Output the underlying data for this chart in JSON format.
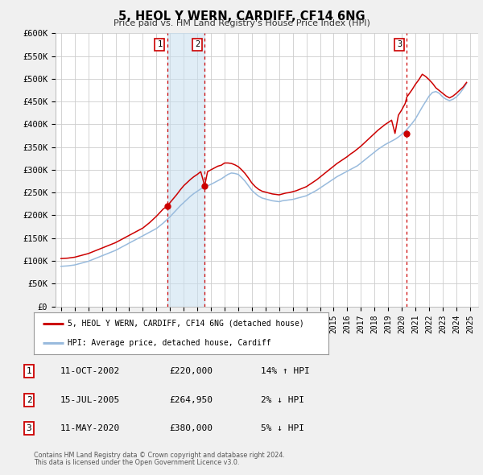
{
  "title": "5, HEOL Y WERN, CARDIFF, CF14 6NG",
  "subtitle": "Price paid vs. HM Land Registry's House Price Index (HPI)",
  "legend_line1": "5, HEOL Y WERN, CARDIFF, CF14 6NG (detached house)",
  "legend_line2": "HPI: Average price, detached house, Cardiff",
  "footer1": "Contains HM Land Registry data © Crown copyright and database right 2024.",
  "footer2": "This data is licensed under the Open Government Licence v3.0.",
  "sale_color": "#cc0000",
  "hpi_color": "#99bbdd",
  "background_color": "#f0f0f0",
  "plot_bg_color": "#ffffff",
  "grid_color": "#cccccc",
  "ylim": [
    0,
    600000
  ],
  "yticks": [
    0,
    50000,
    100000,
    150000,
    200000,
    250000,
    300000,
    350000,
    400000,
    450000,
    500000,
    550000,
    600000
  ],
  "ytick_labels": [
    "£0",
    "£50K",
    "£100K",
    "£150K",
    "£200K",
    "£250K",
    "£300K",
    "£350K",
    "£400K",
    "£450K",
    "£500K",
    "£550K",
    "£600K"
  ],
  "xlim_start": 1994.6,
  "xlim_end": 2025.6,
  "xtick_years": [
    1995,
    1996,
    1997,
    1998,
    1999,
    2000,
    2001,
    2002,
    2003,
    2004,
    2005,
    2006,
    2007,
    2008,
    2009,
    2010,
    2011,
    2012,
    2013,
    2014,
    2015,
    2016,
    2017,
    2018,
    2019,
    2020,
    2021,
    2022,
    2023,
    2024,
    2025
  ],
  "sales": [
    {
      "year": 2002.79,
      "price": 220000,
      "label": "1"
    },
    {
      "year": 2005.54,
      "price": 264950,
      "label": "2"
    },
    {
      "year": 2020.37,
      "price": 380000,
      "label": "3"
    }
  ],
  "sale_vlines": [
    2002.79,
    2005.54,
    2020.37
  ],
  "table_rows": [
    {
      "num": "1",
      "date": "11-OCT-2002",
      "price": "£220,000",
      "hpi": "14% ↑ HPI"
    },
    {
      "num": "2",
      "date": "15-JUL-2005",
      "price": "£264,950",
      "hpi": "2% ↓ HPI"
    },
    {
      "num": "3",
      "date": "11-MAY-2020",
      "price": "£380,000",
      "hpi": "5% ↓ HPI"
    }
  ],
  "hpi_x": [
    1995.0,
    1995.25,
    1995.5,
    1995.75,
    1996.0,
    1996.25,
    1996.5,
    1996.75,
    1997.0,
    1997.25,
    1997.5,
    1997.75,
    1998.0,
    1998.25,
    1998.5,
    1998.75,
    1999.0,
    1999.25,
    1999.5,
    1999.75,
    2000.0,
    2000.25,
    2000.5,
    2000.75,
    2001.0,
    2001.25,
    2001.5,
    2001.75,
    2002.0,
    2002.25,
    2002.5,
    2002.75,
    2003.0,
    2003.25,
    2003.5,
    2003.75,
    2004.0,
    2004.25,
    2004.5,
    2004.75,
    2005.0,
    2005.25,
    2005.5,
    2005.75,
    2006.0,
    2006.25,
    2006.5,
    2006.75,
    2007.0,
    2007.25,
    2007.5,
    2007.75,
    2008.0,
    2008.25,
    2008.5,
    2008.75,
    2009.0,
    2009.25,
    2009.5,
    2009.75,
    2010.0,
    2010.25,
    2010.5,
    2010.75,
    2011.0,
    2011.25,
    2011.5,
    2011.75,
    2012.0,
    2012.25,
    2012.5,
    2012.75,
    2013.0,
    2013.25,
    2013.5,
    2013.75,
    2014.0,
    2014.25,
    2014.5,
    2014.75,
    2015.0,
    2015.25,
    2015.5,
    2015.75,
    2016.0,
    2016.25,
    2016.5,
    2016.75,
    2017.0,
    2017.25,
    2017.5,
    2017.75,
    2018.0,
    2018.25,
    2018.5,
    2018.75,
    2019.0,
    2019.25,
    2019.5,
    2019.75,
    2020.0,
    2020.25,
    2020.5,
    2020.75,
    2021.0,
    2021.25,
    2021.5,
    2021.75,
    2022.0,
    2022.25,
    2022.5,
    2022.75,
    2023.0,
    2023.25,
    2023.5,
    2023.75,
    2024.0,
    2024.25,
    2024.5,
    2024.75
  ],
  "hpi_y": [
    88000,
    88500,
    89000,
    90000,
    91000,
    93000,
    95000,
    97000,
    99000,
    102000,
    105000,
    108000,
    111000,
    114000,
    117000,
    120000,
    123000,
    127000,
    131000,
    135000,
    139000,
    143000,
    147000,
    151000,
    155000,
    159000,
    163000,
    167000,
    171000,
    177000,
    183000,
    190000,
    197000,
    205000,
    213000,
    221000,
    228000,
    235000,
    242000,
    248000,
    253000,
    258000,
    262000,
    265000,
    268000,
    272000,
    276000,
    280000,
    285000,
    290000,
    293000,
    292000,
    290000,
    283000,
    275000,
    265000,
    255000,
    248000,
    242000,
    238000,
    236000,
    234000,
    232000,
    231000,
    230000,
    232000,
    233000,
    234000,
    235000,
    237000,
    239000,
    241000,
    243000,
    247000,
    251000,
    255000,
    260000,
    265000,
    270000,
    275000,
    280000,
    285000,
    289000,
    293000,
    297000,
    301000,
    305000,
    309000,
    315000,
    321000,
    327000,
    333000,
    339000,
    345000,
    350000,
    355000,
    359000,
    363000,
    367000,
    372000,
    378000,
    385000,
    393000,
    402000,
    412000,
    425000,
    438000,
    450000,
    462000,
    470000,
    472000,
    468000,
    460000,
    455000,
    452000,
    455000,
    460000,
    468000,
    478000,
    490000
  ],
  "sale_line_x": [
    1995.0,
    1995.25,
    1995.5,
    1995.75,
    1996.0,
    1996.25,
    1996.5,
    1996.75,
    1997.0,
    1997.25,
    1997.5,
    1997.75,
    1998.0,
    1998.25,
    1998.5,
    1998.75,
    1999.0,
    1999.25,
    1999.5,
    1999.75,
    2000.0,
    2000.25,
    2000.5,
    2000.75,
    2001.0,
    2001.25,
    2001.5,
    2001.75,
    2002.0,
    2002.25,
    2002.5,
    2002.79,
    2003.0,
    2003.25,
    2003.5,
    2003.75,
    2004.0,
    2004.25,
    2004.5,
    2004.75,
    2005.0,
    2005.25,
    2005.54,
    2005.75,
    2006.0,
    2006.25,
    2006.5,
    2006.75,
    2007.0,
    2007.25,
    2007.5,
    2007.75,
    2008.0,
    2008.25,
    2008.5,
    2008.75,
    2009.0,
    2009.25,
    2009.5,
    2009.75,
    2010.0,
    2010.25,
    2010.5,
    2010.75,
    2011.0,
    2011.25,
    2011.5,
    2011.75,
    2012.0,
    2012.25,
    2012.5,
    2012.75,
    2013.0,
    2013.25,
    2013.5,
    2013.75,
    2014.0,
    2014.25,
    2014.5,
    2014.75,
    2015.0,
    2015.25,
    2015.5,
    2015.75,
    2016.0,
    2016.25,
    2016.5,
    2016.75,
    2017.0,
    2017.25,
    2017.5,
    2017.75,
    2018.0,
    2018.25,
    2018.5,
    2018.75,
    2019.0,
    2019.25,
    2019.5,
    2019.75,
    2020.0,
    2020.25,
    2020.37,
    2020.75,
    2021.0,
    2021.25,
    2021.5,
    2021.75,
    2022.0,
    2022.25,
    2022.5,
    2022.75,
    2023.0,
    2023.25,
    2023.5,
    2023.75,
    2024.0,
    2024.25,
    2024.5,
    2024.75
  ],
  "sale_line_y": [
    105000,
    105500,
    106000,
    107000,
    108000,
    110000,
    112000,
    114000,
    116000,
    119000,
    122000,
    125000,
    128000,
    131000,
    134000,
    137000,
    140000,
    144000,
    148000,
    152000,
    156000,
    160000,
    164000,
    168000,
    172000,
    178000,
    184000,
    191000,
    198000,
    206000,
    214000,
    220000,
    228000,
    237000,
    246000,
    256000,
    265000,
    272000,
    279000,
    285000,
    290000,
    296000,
    264950,
    296000,
    300000,
    304000,
    308000,
    310000,
    315000,
    315000,
    314000,
    311000,
    307000,
    300000,
    292000,
    282000,
    271000,
    263000,
    257000,
    253000,
    251000,
    249000,
    247000,
    246000,
    245000,
    247000,
    249000,
    250000,
    252000,
    254000,
    257000,
    260000,
    263000,
    268000,
    273000,
    278000,
    284000,
    290000,
    296000,
    302000,
    308000,
    314000,
    319000,
    324000,
    329000,
    335000,
    340000,
    346000,
    352000,
    359000,
    366000,
    373000,
    380000,
    387000,
    393000,
    399000,
    404000,
    409000,
    380000,
    420000,
    432000,
    446000,
    460000,
    476000,
    488000,
    498000,
    510000,
    505000,
    498000,
    490000,
    480000,
    474000,
    468000,
    462000,
    458000,
    462000,
    468000,
    475000,
    482000,
    492000
  ]
}
